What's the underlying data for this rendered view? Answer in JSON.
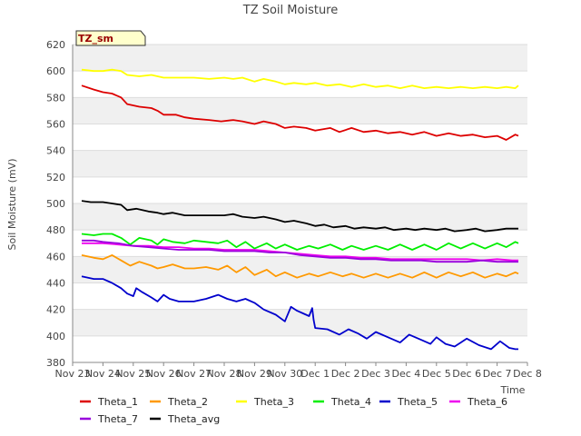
{
  "chart_data": {
    "type": "line",
    "title": "TZ Soil Moisture",
    "xlabel": "Time",
    "ylabel": "Soil Moisture (mV)",
    "badge": "TZ_sm",
    "ylim": [
      380,
      620
    ],
    "yticks": [
      380,
      400,
      420,
      440,
      460,
      480,
      500,
      520,
      540,
      560,
      580,
      600,
      620
    ],
    "xlim": [
      0,
      15
    ],
    "xticks": [
      {
        "x": 0,
        "label": "Nov 23"
      },
      {
        "x": 1,
        "label": "Nov 24"
      },
      {
        "x": 2,
        "label": "Nov 25"
      },
      {
        "x": 3,
        "label": "Nov 26"
      },
      {
        "x": 4,
        "label": "Nov 27"
      },
      {
        "x": 5,
        "label": "Nov 28"
      },
      {
        "x": 6,
        "label": "Nov 29"
      },
      {
        "x": 7,
        "label": "Nov 30"
      },
      {
        "x": 8,
        "label": "Dec 1"
      },
      {
        "x": 9,
        "label": "Dec 2"
      },
      {
        "x": 10,
        "label": "Dec 3"
      },
      {
        "x": 11,
        "label": "Dec 4"
      },
      {
        "x": 12,
        "label": "Dec 5"
      },
      {
        "x": 13,
        "label": "Dec 6"
      },
      {
        "x": 14,
        "label": "Dec 7"
      },
      {
        "x": 15,
        "label": "Dec 8"
      }
    ],
    "series": [
      {
        "name": "Theta_1",
        "color": "#dd0000",
        "x": [
          0.3,
          0.7,
          1.0,
          1.3,
          1.6,
          1.8,
          2.2,
          2.6,
          2.8,
          3.0,
          3.4,
          3.7,
          4.0,
          4.5,
          4.9,
          5.3,
          5.6,
          6.0,
          6.3,
          6.7,
          7.0,
          7.3,
          7.7,
          8.0,
          8.5,
          8.8,
          9.2,
          9.6,
          10.0,
          10.4,
          10.8,
          11.2,
          11.6,
          12.0,
          12.4,
          12.8,
          13.2,
          13.6,
          14.0,
          14.3,
          14.6,
          14.7
        ],
        "y": [
          589,
          586,
          584,
          583,
          580,
          575,
          573,
          572,
          570,
          567,
          567,
          565,
          564,
          563,
          562,
          563,
          562,
          560,
          562,
          560,
          557,
          558,
          557,
          555,
          557,
          554,
          557,
          554,
          555,
          553,
          554,
          552,
          554,
          551,
          553,
          551,
          552,
          550,
          551,
          548,
          552,
          551
        ]
      },
      {
        "name": "Theta_2",
        "color": "#ff9900",
        "x": [
          0.3,
          0.7,
          1.0,
          1.3,
          1.6,
          1.9,
          2.2,
          2.6,
          2.8,
          3.0,
          3.3,
          3.7,
          4.0,
          4.4,
          4.8,
          5.1,
          5.4,
          5.7,
          6.0,
          6.4,
          6.7,
          7.0,
          7.4,
          7.8,
          8.1,
          8.5,
          8.9,
          9.2,
          9.6,
          10.0,
          10.4,
          10.8,
          11.2,
          11.6,
          12.0,
          12.4,
          12.8,
          13.2,
          13.6,
          14.0,
          14.3,
          14.6,
          14.7
        ],
        "y": [
          461,
          459,
          458,
          461,
          457,
          453,
          456,
          453,
          451,
          452,
          454,
          451,
          451,
          452,
          450,
          453,
          448,
          452,
          446,
          450,
          445,
          448,
          444,
          447,
          445,
          448,
          445,
          447,
          444,
          447,
          444,
          447,
          444,
          448,
          444,
          448,
          445,
          448,
          444,
          447,
          445,
          448,
          447
        ]
      },
      {
        "name": "Theta_3",
        "color": "#ffff00",
        "x": [
          0.3,
          0.7,
          1.0,
          1.3,
          1.6,
          1.8,
          2.2,
          2.6,
          2.8,
          3.0,
          3.5,
          4.0,
          4.5,
          5.0,
          5.3,
          5.6,
          6.0,
          6.3,
          6.7,
          7.0,
          7.3,
          7.7,
          8.0,
          8.4,
          8.8,
          9.2,
          9.6,
          10.0,
          10.4,
          10.8,
          11.2,
          11.6,
          12.0,
          12.4,
          12.8,
          13.2,
          13.6,
          14.0,
          14.3,
          14.6,
          14.7
        ],
        "y": [
          601,
          600,
          600,
          601,
          600,
          597,
          596,
          597,
          596,
          595,
          595,
          595,
          594,
          595,
          594,
          595,
          592,
          594,
          592,
          590,
          591,
          590,
          591,
          589,
          590,
          588,
          590,
          588,
          589,
          587,
          589,
          587,
          588,
          587,
          588,
          587,
          588,
          587,
          588,
          587,
          589
        ]
      },
      {
        "name": "Theta_4",
        "color": "#00ee00",
        "x": [
          0.3,
          0.7,
          1.0,
          1.3,
          1.6,
          1.9,
          2.2,
          2.6,
          2.8,
          3.0,
          3.3,
          3.7,
          4.0,
          4.4,
          4.8,
          5.1,
          5.4,
          5.7,
          6.0,
          6.4,
          6.7,
          7.0,
          7.4,
          7.8,
          8.1,
          8.5,
          8.9,
          9.2,
          9.6,
          10.0,
          10.4,
          10.8,
          11.2,
          11.6,
          12.0,
          12.4,
          12.8,
          13.2,
          13.6,
          14.0,
          14.3,
          14.6,
          14.7
        ],
        "y": [
          477,
          476,
          477,
          477,
          474,
          469,
          474,
          472,
          469,
          473,
          471,
          470,
          472,
          471,
          470,
          472,
          467,
          471,
          466,
          470,
          466,
          469,
          465,
          468,
          466,
          469,
          465,
          468,
          465,
          468,
          465,
          469,
          465,
          469,
          465,
          470,
          466,
          470,
          466,
          470,
          467,
          471,
          470
        ]
      },
      {
        "name": "Theta_5",
        "color": "#0000cc",
        "x": [
          0.3,
          0.7,
          1.0,
          1.3,
          1.6,
          1.8,
          2.0,
          2.1,
          2.3,
          2.6,
          2.8,
          3.0,
          3.2,
          3.5,
          4.0,
          4.4,
          4.8,
          5.1,
          5.4,
          5.7,
          6.0,
          6.3,
          6.7,
          7.0,
          7.2,
          7.4,
          7.6,
          7.8,
          7.9,
          7.95,
          8.0,
          8.4,
          8.8,
          9.1,
          9.4,
          9.7,
          10.0,
          10.4,
          10.8,
          11.1,
          11.5,
          11.8,
          12.0,
          12.3,
          12.6,
          13.0,
          13.4,
          13.8,
          14.1,
          14.4,
          14.6,
          14.7
        ],
        "y": [
          445,
          443,
          443,
          440,
          436,
          432,
          430,
          436,
          433,
          429,
          426,
          431,
          428,
          426,
          426,
          428,
          431,
          428,
          426,
          428,
          425,
          420,
          416,
          411,
          422,
          419,
          417,
          415,
          421,
          412,
          406,
          405,
          401,
          405,
          402,
          398,
          403,
          399,
          395,
          401,
          397,
          394,
          399,
          394,
          392,
          398,
          393,
          390,
          396,
          391,
          390,
          390
        ]
      },
      {
        "name": "Theta_6",
        "color": "#ee00ee",
        "x": [
          0.3,
          0.7,
          1.0,
          1.5,
          2.0,
          2.5,
          3.0,
          3.5,
          4.0,
          4.5,
          5.0,
          5.5,
          6.0,
          6.5,
          7.0,
          7.5,
          8.0,
          8.5,
          9.0,
          9.5,
          10.0,
          10.5,
          11.0,
          11.5,
          12.0,
          12.5,
          13.0,
          13.5,
          14.0,
          14.5,
          14.7
        ],
        "y": [
          470,
          470,
          470,
          469,
          468,
          468,
          467,
          467,
          466,
          466,
          465,
          465,
          465,
          464,
          463,
          462,
          461,
          460,
          460,
          459,
          459,
          458,
          458,
          458,
          458,
          458,
          458,
          457,
          458,
          457,
          457
        ]
      },
      {
        "name": "Theta_7",
        "color": "#9900dd",
        "x": [
          0.3,
          0.7,
          1.0,
          1.5,
          2.0,
          2.5,
          3.0,
          3.5,
          4.0,
          4.5,
          5.0,
          5.5,
          6.0,
          6.5,
          7.0,
          7.5,
          8.0,
          8.5,
          9.0,
          9.5,
          10.0,
          10.5,
          11.0,
          11.5,
          12.0,
          12.5,
          13.0,
          13.5,
          14.0,
          14.5,
          14.7
        ],
        "y": [
          472,
          472,
          471,
          470,
          468,
          467,
          466,
          465,
          465,
          465,
          464,
          464,
          464,
          463,
          463,
          461,
          460,
          459,
          459,
          458,
          458,
          457,
          457,
          457,
          456,
          456,
          456,
          457,
          456,
          456,
          456
        ]
      },
      {
        "name": "Theta_avg",
        "color": "#000000",
        "x": [
          0.3,
          0.6,
          1.0,
          1.3,
          1.6,
          1.8,
          2.1,
          2.5,
          2.8,
          3.0,
          3.3,
          3.7,
          4.0,
          4.5,
          5.0,
          5.3,
          5.6,
          6.0,
          6.3,
          6.7,
          7.0,
          7.3,
          7.7,
          8.0,
          8.3,
          8.6,
          9.0,
          9.3,
          9.6,
          10.0,
          10.3,
          10.6,
          11.0,
          11.3,
          11.6,
          12.0,
          12.3,
          12.6,
          13.0,
          13.3,
          13.6,
          14.0,
          14.3,
          14.7
        ],
        "y": [
          502,
          501,
          501,
          500,
          499,
          495,
          496,
          494,
          493,
          492,
          493,
          491,
          491,
          491,
          491,
          492,
          490,
          489,
          490,
          488,
          486,
          487,
          485,
          483,
          484,
          482,
          483,
          481,
          482,
          481,
          482,
          480,
          481,
          480,
          481,
          480,
          481,
          479,
          480,
          481,
          479,
          480,
          481,
          481
        ]
      }
    ]
  }
}
